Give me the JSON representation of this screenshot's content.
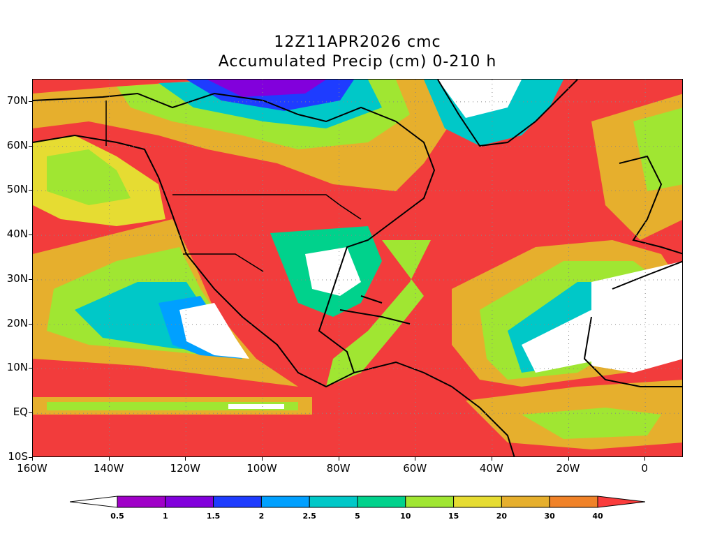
{
  "title": {
    "line1": "12Z11APR2026 cmc",
    "line2": "Accumulated Precip (cm) 0-210 h"
  },
  "map": {
    "region": "North Atlantic and North America",
    "lat_range": [
      -10,
      75
    ],
    "lon_range": [
      -160,
      10
    ],
    "grid": "dotted",
    "y_ticks": [
      {
        "lat": 70,
        "label": "70N"
      },
      {
        "lat": 60,
        "label": "60N"
      },
      {
        "lat": 50,
        "label": "50N"
      },
      {
        "lat": 40,
        "label": "40N"
      },
      {
        "lat": 30,
        "label": "30N"
      },
      {
        "lat": 20,
        "label": "20N"
      },
      {
        "lat": 10,
        "label": "10N"
      },
      {
        "lat": 0,
        "label": "EQ"
      },
      {
        "lat": -10,
        "label": "10S"
      }
    ],
    "x_ticks": [
      {
        "lon": -160,
        "label": "160W"
      },
      {
        "lon": -140,
        "label": "140W"
      },
      {
        "lon": -120,
        "label": "120W"
      },
      {
        "lon": -100,
        "label": "100W"
      },
      {
        "lon": -80,
        "label": "80W"
      },
      {
        "lon": -60,
        "label": "60W"
      },
      {
        "lon": -40,
        "label": "40W"
      },
      {
        "lon": -20,
        "label": "20W"
      },
      {
        "lon": 0,
        "label": "0"
      }
    ]
  },
  "colorbar": {
    "labels": [
      "0.5",
      "1",
      "1.5",
      "2",
      "2.5",
      "5",
      "10",
      "15",
      "20",
      "30",
      "40"
    ],
    "colors": [
      "#ffffff",
      "#a000c8",
      "#8200dc",
      "#1e3cff",
      "#00a0ff",
      "#00c8c8",
      "#00d28c",
      "#a0e632",
      "#e6dc32",
      "#e6af2d",
      "#f08228",
      "#fa3c3c"
    ]
  }
}
